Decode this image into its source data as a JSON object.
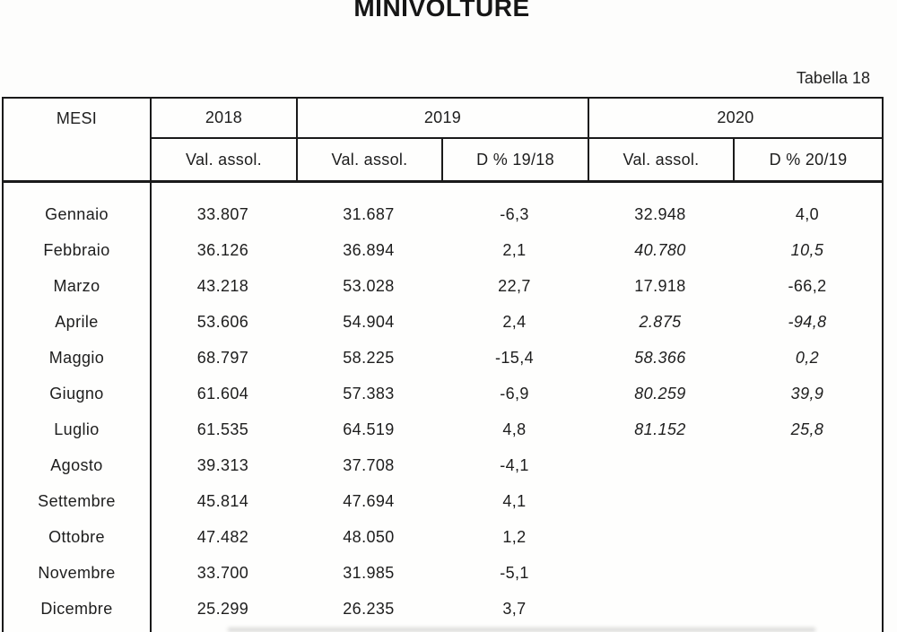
{
  "title": "MINIVOLTURE",
  "table_label": "Tabella 18",
  "colors": {
    "ink": "#1a1a1a",
    "background": "#fdfdfc"
  },
  "header": {
    "mesi": "MESI",
    "y2018": "2018",
    "y2019": "2019",
    "y2020": "2020",
    "val_2018": "Val. assol.",
    "val_2019": "Val. assol.",
    "d_19_18": "D % 19/18",
    "val_2020": "Val. assol.",
    "d_20_19": "D % 20/19"
  },
  "rows": [
    {
      "month": "Gennaio",
      "v2018": "33.807",
      "v2019": "31.687",
      "d1918": "-6,3",
      "v2020": "32.948",
      "d2019": "4,0",
      "provisional": false
    },
    {
      "month": "Febbraio",
      "v2018": "36.126",
      "v2019": "36.894",
      "d1918": "2,1",
      "v2020": "40.780",
      "d2019": "10,5",
      "provisional": true
    },
    {
      "month": "Marzo",
      "v2018": "43.218",
      "v2019": "53.028",
      "d1918": "22,7",
      "v2020": "17.918",
      "d2019": "-66,2",
      "provisional": false
    },
    {
      "month": "Aprile",
      "v2018": "53.606",
      "v2019": "54.904",
      "d1918": "2,4",
      "v2020": "2.875",
      "d2019": "-94,8",
      "provisional": true
    },
    {
      "month": "Maggio",
      "v2018": "68.797",
      "v2019": "58.225",
      "d1918": "-15,4",
      "v2020": "58.366",
      "d2019": "0,2",
      "provisional": true
    },
    {
      "month": "Giugno",
      "v2018": "61.604",
      "v2019": "57.383",
      "d1918": "-6,9",
      "v2020": "80.259",
      "d2019": "39,9",
      "provisional": true
    },
    {
      "month": "Luglio",
      "v2018": "61.535",
      "v2019": "64.519",
      "d1918": "4,8",
      "v2020": "81.152",
      "d2019": "25,8",
      "provisional": true
    },
    {
      "month": "Agosto",
      "v2018": "39.313",
      "v2019": "37.708",
      "d1918": "-4,1",
      "v2020": "",
      "d2019": "",
      "provisional": false
    },
    {
      "month": "Settembre",
      "v2018": "45.814",
      "v2019": "47.694",
      "d1918": "4,1",
      "v2020": "",
      "d2019": "",
      "provisional": false
    },
    {
      "month": "Ottobre",
      "v2018": "47.482",
      "v2019": "48.050",
      "d1918": "1,2",
      "v2020": "",
      "d2019": "",
      "provisional": false
    },
    {
      "month": "Novembre",
      "v2018": "33.700",
      "v2019": "31.985",
      "d1918": "-5,1",
      "v2020": "",
      "d2019": "",
      "provisional": false
    },
    {
      "month": "Dicembre",
      "v2018": "25.299",
      "v2019": "26.235",
      "d1918": "3,7",
      "v2020": "",
      "d2019": "",
      "provisional": false
    }
  ]
}
